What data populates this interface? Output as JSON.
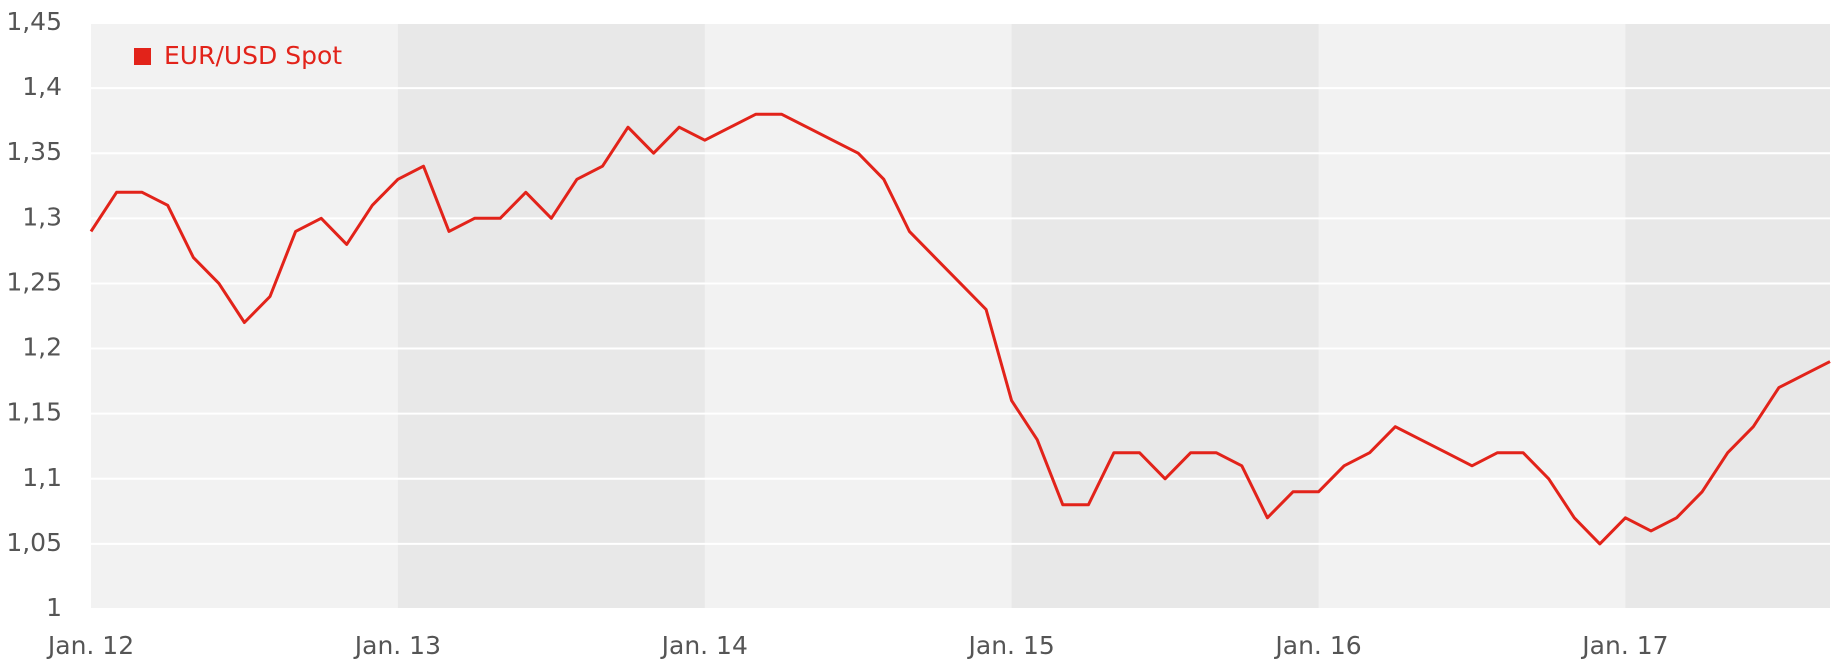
{
  "chart_data": {
    "type": "line",
    "x": [
      "2012-01",
      "2012-02",
      "2012-03",
      "2012-04",
      "2012-05",
      "2012-06",
      "2012-07",
      "2012-08",
      "2012-09",
      "2012-10",
      "2012-11",
      "2012-12",
      "2013-01",
      "2013-02",
      "2013-03",
      "2013-04",
      "2013-05",
      "2013-06",
      "2013-07",
      "2013-08",
      "2013-09",
      "2013-10",
      "2013-11",
      "2013-12",
      "2014-01",
      "2014-02",
      "2014-03",
      "2014-04",
      "2014-05",
      "2014-06",
      "2014-07",
      "2014-08",
      "2014-09",
      "2014-10",
      "2014-11",
      "2014-12",
      "2015-01",
      "2015-02",
      "2015-03",
      "2015-04",
      "2015-05",
      "2015-06",
      "2015-07",
      "2015-08",
      "2015-09",
      "2015-10",
      "2015-11",
      "2015-12",
      "2016-01",
      "2016-02",
      "2016-03",
      "2016-04",
      "2016-05",
      "2016-06",
      "2016-07",
      "2016-08",
      "2016-09",
      "2016-10",
      "2016-11",
      "2016-12",
      "2017-01",
      "2017-02",
      "2017-03",
      "2017-04",
      "2017-05",
      "2017-06",
      "2017-07",
      "2017-08",
      "2017-09"
    ],
    "series": [
      {
        "name": "EUR/USD Spot",
        "color": "#e2231a",
        "values": [
          1.29,
          1.32,
          1.32,
          1.31,
          1.27,
          1.25,
          1.22,
          1.24,
          1.29,
          1.3,
          1.28,
          1.31,
          1.33,
          1.34,
          1.29,
          1.3,
          1.3,
          1.32,
          1.3,
          1.33,
          1.34,
          1.37,
          1.35,
          1.37,
          1.36,
          1.37,
          1.38,
          1.38,
          1.37,
          1.36,
          1.35,
          1.33,
          1.29,
          1.27,
          1.25,
          1.23,
          1.16,
          1.13,
          1.08,
          1.08,
          1.12,
          1.12,
          1.1,
          1.12,
          1.12,
          1.11,
          1.07,
          1.09,
          1.09,
          1.11,
          1.12,
          1.14,
          1.13,
          1.12,
          1.11,
          1.12,
          1.12,
          1.1,
          1.07,
          1.05,
          1.07,
          1.06,
          1.07,
          1.09,
          1.12,
          1.14,
          1.17,
          1.18,
          1.19
        ]
      }
    ],
    "xlim": [
      "2012-01",
      "2017-09"
    ],
    "xticks": [
      {
        "value": "2012-01",
        "label": "Jan. 12"
      },
      {
        "value": "2013-01",
        "label": "Jan. 13"
      },
      {
        "value": "2014-01",
        "label": "Jan. 14"
      },
      {
        "value": "2015-01",
        "label": "Jan. 15"
      },
      {
        "value": "2016-01",
        "label": "Jan. 16"
      },
      {
        "value": "2017-01",
        "label": "Jan. 17"
      }
    ],
    "ylim": [
      1,
      1.45
    ],
    "yticks": [
      1,
      {
        "value": 1.05,
        "label": "1,05"
      },
      {
        "value": 1.1,
        "label": "1,1"
      },
      {
        "value": 1.15,
        "label": "1,15"
      },
      {
        "value": 1.2,
        "label": "1,2"
      },
      {
        "value": 1.25,
        "label": "1,25"
      },
      {
        "value": 1.3,
        "label": "1,3"
      },
      {
        "value": 1.35,
        "label": "1,35"
      },
      {
        "value": 1.4,
        "label": "1,4"
      },
      {
        "value": 1.45,
        "label": "1,45"
      }
    ],
    "grid": true,
    "legend": "top-left"
  }
}
